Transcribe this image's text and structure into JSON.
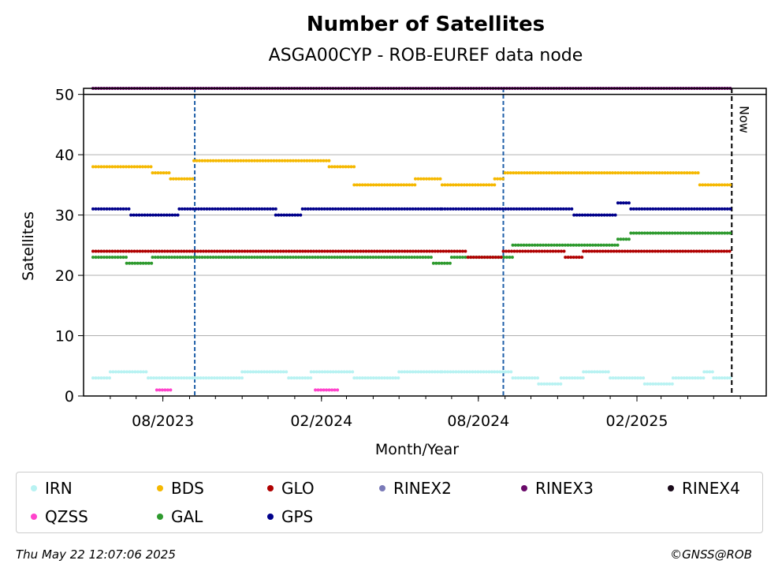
{
  "chart_data": {
    "type": "scatter",
    "title": "Number of Satellites",
    "subtitle": "ASGA00CYP - ROB-EUREF data node",
    "xlabel": "Month/Year",
    "ylabel": "Satellites",
    "xlim": [
      "2023-05-01",
      "2025-07-01"
    ],
    "ylim": [
      0,
      51
    ],
    "yticks": [
      0,
      10,
      20,
      30,
      40,
      50
    ],
    "xticks": [
      {
        "date": "2023-08-01",
        "label": "08/2023"
      },
      {
        "date": "2024-02-01",
        "label": "02/2024"
      },
      {
        "date": "2024-08-01",
        "label": "08/2024"
      },
      {
        "date": "2025-02-01",
        "label": "02/2025"
      }
    ],
    "grid": "y",
    "vlines": [
      {
        "date": "2023-09-07",
        "color": "#1f5fa8"
      },
      {
        "date": "2024-08-30",
        "color": "#1f5fa8"
      }
    ],
    "now_line": {
      "date": "2025-05-22",
      "label": "Now"
    },
    "series": [
      {
        "name": "IRN",
        "color": "#b8f2f2",
        "segments": [
          [
            "2023-05-12",
            "2023-06-01",
            3
          ],
          [
            "2023-06-01",
            "2023-07-15",
            4
          ],
          [
            "2023-07-15",
            "2023-11-01",
            3
          ],
          [
            "2023-11-01",
            "2023-12-25",
            4
          ],
          [
            "2023-12-25",
            "2024-01-20",
            3
          ],
          [
            "2024-01-20",
            "2024-03-10",
            4
          ],
          [
            "2024-03-10",
            "2024-05-01",
            3
          ],
          [
            "2024-05-01",
            "2024-06-20",
            4
          ],
          [
            "2024-06-20",
            "2024-09-10",
            4
          ],
          [
            "2024-09-10",
            "2024-10-10",
            3
          ],
          [
            "2024-10-10",
            "2024-11-05",
            2
          ],
          [
            "2024-11-05",
            "2024-12-01",
            3
          ],
          [
            "2024-12-01",
            "2025-01-01",
            4
          ],
          [
            "2025-01-01",
            "2025-02-10",
            3
          ],
          [
            "2025-02-10",
            "2025-03-15",
            2
          ],
          [
            "2025-03-15",
            "2025-04-20",
            3
          ],
          [
            "2025-04-20",
            "2025-05-01",
            4
          ],
          [
            "2025-05-01",
            "2025-05-21",
            3
          ]
        ]
      },
      {
        "name": "QZSS",
        "color": "#ff44cc",
        "segments": [
          [
            "2023-07-25",
            "2023-08-10",
            1
          ],
          [
            "2024-01-25",
            "2024-02-22",
            1
          ]
        ]
      },
      {
        "name": "BDS",
        "color": "#f5b800",
        "segments": [
          [
            "2023-05-12",
            "2023-07-20",
            38
          ],
          [
            "2023-07-20",
            "2023-08-10",
            37
          ],
          [
            "2023-08-10",
            "2023-09-05",
            36
          ],
          [
            "2023-09-06",
            "2024-02-10",
            39
          ],
          [
            "2024-02-10",
            "2024-03-10",
            38
          ],
          [
            "2024-03-10",
            "2024-05-20",
            35
          ],
          [
            "2024-05-20",
            "2024-06-20",
            36
          ],
          [
            "2024-06-20",
            "2024-08-20",
            35
          ],
          [
            "2024-08-20",
            "2024-08-31",
            36
          ],
          [
            "2024-09-01",
            "2025-04-15",
            37
          ],
          [
            "2025-04-15",
            "2025-05-21",
            35
          ]
        ]
      },
      {
        "name": "GAL",
        "color": "#2e9a2e",
        "segments": [
          [
            "2023-05-12",
            "2023-06-20",
            23
          ],
          [
            "2023-06-20",
            "2023-07-20",
            22
          ],
          [
            "2023-07-20",
            "2024-06-10",
            23
          ],
          [
            "2024-06-10",
            "2024-07-01",
            22
          ],
          [
            "2024-07-01",
            "2024-09-10",
            23
          ],
          [
            "2024-09-10",
            "2025-01-10",
            25
          ],
          [
            "2025-01-10",
            "2025-01-25",
            26
          ],
          [
            "2025-01-25",
            "2025-05-21",
            27
          ]
        ]
      },
      {
        "name": "GLO",
        "color": "#b00000",
        "segments": [
          [
            "2023-05-12",
            "2024-07-20",
            24
          ],
          [
            "2024-07-20",
            "2024-08-30",
            23
          ],
          [
            "2024-08-30",
            "2024-11-10",
            24
          ],
          [
            "2024-11-10",
            "2024-12-01",
            23
          ],
          [
            "2024-12-01",
            "2025-05-21",
            24
          ]
        ]
      },
      {
        "name": "GPS",
        "color": "#00008b",
        "segments": [
          [
            "2023-05-12",
            "2023-06-25",
            31
          ],
          [
            "2023-06-25",
            "2023-08-20",
            30
          ],
          [
            "2023-08-20",
            "2023-12-10",
            31
          ],
          [
            "2023-12-10",
            "2024-01-10",
            30
          ],
          [
            "2024-01-10",
            "2024-06-20",
            31
          ],
          [
            "2024-06-20",
            "2024-11-20",
            31
          ],
          [
            "2024-11-20",
            "2025-01-10",
            30
          ],
          [
            "2025-01-10",
            "2025-01-25",
            32
          ],
          [
            "2025-01-25",
            "2025-05-21",
            31
          ]
        ]
      },
      {
        "name": "RINEX2",
        "color": "#7a7ab8",
        "segments": []
      },
      {
        "name": "RINEX3",
        "color": "#6a0a6a",
        "segments": [
          [
            "2023-05-12",
            "2025-05-21",
            51
          ]
        ]
      },
      {
        "name": "RINEX4",
        "color": "#1a0a1a",
        "segments": []
      }
    ]
  },
  "footer": {
    "timestamp": "Thu May 22 12:07:06 2025",
    "copyright": "©GNSS@ROB"
  }
}
